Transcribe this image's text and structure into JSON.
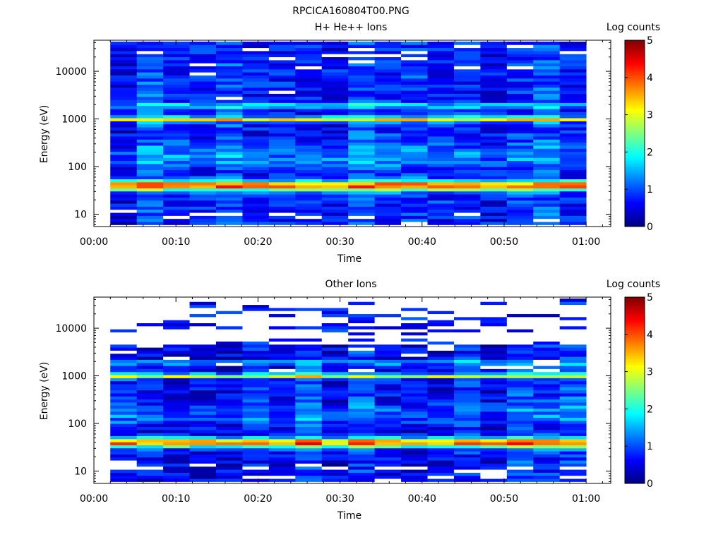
{
  "figure_title": "RPCICA160804T00.PNG",
  "colors": {
    "missing": "#ffffff",
    "axis": "#000000",
    "background": "#ffffff"
  },
  "colormap": [
    "#00007f",
    "#0000ff",
    "#007fff",
    "#00ffff",
    "#7fff7f",
    "#ffff00",
    "#ff7f00",
    "#ff0000",
    "#7f0000"
  ],
  "chart_data": [
    {
      "type": "heatmap",
      "title": "H+ He++ Ions",
      "xlabel": "Time",
      "ylabel": "Energy (eV)",
      "yscale": "log",
      "xlim": [
        "00:00",
        "01:03"
      ],
      "ylim": [
        5.5,
        45000
      ],
      "xticks": [
        "00:00",
        "00:10",
        "00:20",
        "00:30",
        "00:40",
        "00:50",
        "01:00"
      ],
      "yticks": [
        "10",
        "100",
        "1000",
        "10000"
      ],
      "colorbar": {
        "label": "Log counts",
        "range": [
          0,
          5
        ],
        "ticks": [
          "0",
          "1",
          "2",
          "3",
          "4",
          "5"
        ]
      },
      "time_bins_start": "00:02",
      "time_bins_end": "01:00",
      "num_time_bins": 18,
      "energy_range_ev": [
        6,
        42000
      ],
      "num_energy_bins": 60,
      "features": {
        "band_40ev_log_counts": 3.8,
        "band_1000ev_log_counts": 3.2,
        "band_1900ev_log_counts": 2.6,
        "background_log_counts": 0.8
      }
    },
    {
      "type": "heatmap",
      "title": "Other Ions",
      "xlabel": "Time",
      "ylabel": "Energy (eV)",
      "yscale": "log",
      "xlim": [
        "00:00",
        "01:03"
      ],
      "ylim": [
        5.5,
        45000
      ],
      "xticks": [
        "00:00",
        "00:10",
        "00:20",
        "00:30",
        "00:40",
        "00:50",
        "01:00"
      ],
      "yticks": [
        "10",
        "100",
        "1000",
        "10000"
      ],
      "colorbar": {
        "label": "Log counts",
        "range": [
          0,
          5
        ],
        "ticks": [
          "0",
          "1",
          "2",
          "3",
          "4",
          "5"
        ]
      },
      "time_bins_start": "00:02",
      "time_bins_end": "01:00",
      "num_time_bins": 18,
      "energy_range_ev": [
        6,
        42000
      ],
      "num_energy_bins": 60,
      "features": {
        "band_40ev_log_counts": 3.8,
        "band_1000ev_log_counts": 3.0,
        "band_1900ev_log_counts": 2.2,
        "background_log_counts": 0.7
      }
    }
  ]
}
